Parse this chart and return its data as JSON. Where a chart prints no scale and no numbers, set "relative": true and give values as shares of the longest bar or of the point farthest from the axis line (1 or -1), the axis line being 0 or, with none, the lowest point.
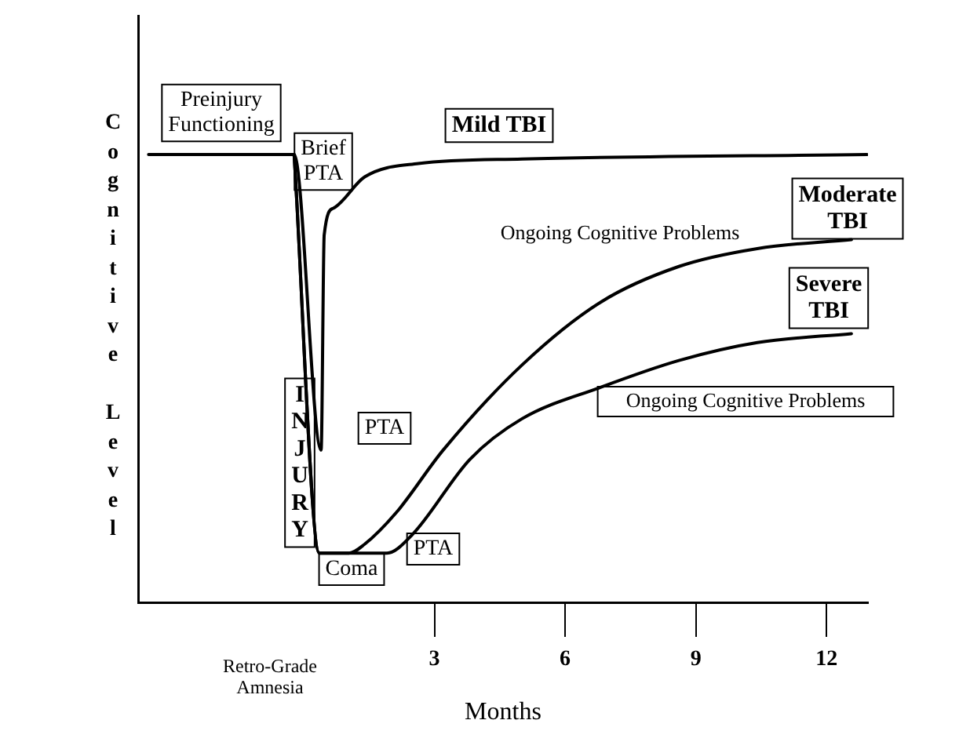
{
  "chart_data": {
    "type": "line",
    "relative": true,
    "xlabel": "Months",
    "ylabel": "Cognitive Level",
    "xlim": [
      -3.8,
      12.95
    ],
    "xticks": [
      3,
      6,
      9,
      12
    ],
    "legend": false,
    "grid": false,
    "marker": "none",
    "line_style": "solid",
    "series": [
      {
        "name": "Mild TBI",
        "color": "#000000",
        "x": [
          -3.56,
          -0.22,
          0.4,
          0.47,
          0.68,
          1.4,
          2.63,
          5.01,
          12.93
        ],
        "values": [
          1,
          1,
          0.34,
          0.82,
          0.88,
          0.95,
          0.98,
          0.99,
          1
        ]
      },
      {
        "name": "Moderate TBI",
        "color": "#000000",
        "x": [
          -0.22,
          0.36,
          1.04,
          1.4,
          2.12,
          3.2,
          5.01,
          6.81,
          8.61,
          10.41,
          12.57
        ],
        "values": [
          1,
          0.11,
          0.11,
          0.13,
          0.2,
          0.34,
          0.53,
          0.67,
          0.75,
          0.79,
          0.81
        ]
      },
      {
        "name": "Severe TBI",
        "color": "#000000",
        "x": [
          -0.22,
          0.36,
          1.91,
          2.48,
          3.82,
          5.01,
          6.81,
          8.61,
          10.41,
          12.57
        ],
        "values": [
          1,
          0.11,
          0.11,
          0.15,
          0.32,
          0.41,
          0.48,
          0.54,
          0.58,
          0.6
        ]
      }
    ],
    "annotations": [
      "Preinjury Functioning",
      "Brief PTA",
      "INJURY",
      "Ongoing Cognitive Problems",
      "Ongoing Cognitive Problems",
      "PTA",
      "PTA",
      "Coma",
      "Retro-Grade Amnesia"
    ]
  }
}
